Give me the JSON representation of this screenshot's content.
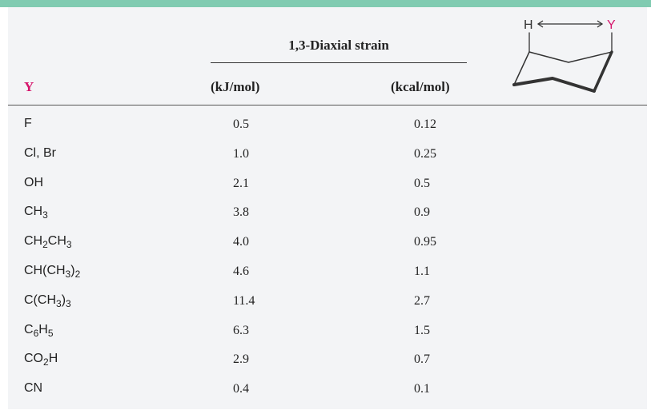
{
  "header": {
    "group_title": "1,3-Diaxial strain",
    "col_y": "Y",
    "col_kj": "(kJ/mol)",
    "col_kcal": "(kcal/mol)"
  },
  "diagram": {
    "label_h": "H",
    "label_y": "Y"
  },
  "colors": {
    "accent_bar": "#80cbb1",
    "y_label": "#d6156c",
    "panel": "#f3f4f6"
  },
  "rows": [
    {
      "y": "F",
      "kj": "0.5",
      "kcal": "0.12"
    },
    {
      "y": "Cl, Br",
      "kj": "1.0",
      "kcal": "0.25"
    },
    {
      "y": "OH",
      "kj": "2.1",
      "kcal": "0.5"
    },
    {
      "y": "CH3",
      "kj": "3.8",
      "kcal": "0.9"
    },
    {
      "y": "CH2CH3",
      "kj": "4.0",
      "kcal": "0.95"
    },
    {
      "y": "CH(CH3)2",
      "kj": "4.6",
      "kcal": "1.1"
    },
    {
      "y": "C(CH3)3",
      "kj": "11.4",
      "kcal": "2.7"
    },
    {
      "y": "C6H5",
      "kj": "6.3",
      "kcal": "1.5"
    },
    {
      "y": "CO2H",
      "kj": "2.9",
      "kcal": "0.7"
    },
    {
      "y": "CN",
      "kj": "0.4",
      "kcal": "0.1"
    }
  ]
}
